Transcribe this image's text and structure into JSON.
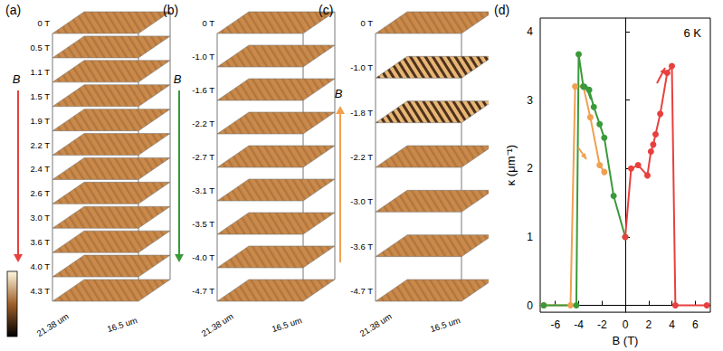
{
  "panels": [
    {
      "label": "(a)",
      "axis_label": "B",
      "color": "#e8403f",
      "direction": "down",
      "colorbar": true,
      "fields": [
        "0 T",
        "0.5 T",
        "1.1 T",
        "1.5 T",
        "1.9 T",
        "2.2 T",
        "2.4 T",
        "2.6 T",
        "3.0 T",
        "3.6 T",
        "4.0 T",
        "4.3 T"
      ],
      "dims": [
        "21.38 um",
        "16.5 um"
      ]
    },
    {
      "label": "(b)",
      "axis_label": "B",
      "color": "#3a9a3a",
      "direction": "down",
      "colorbar": false,
      "fields": [
        "0 T",
        "-1.0 T",
        "-1.6 T",
        "-2.2 T",
        "-2.7 T",
        "-3.1 T",
        "-3.5 T",
        "-4.0 T",
        "-4.7 T"
      ],
      "dims": [
        "21.38 um",
        "16.5 um"
      ]
    },
    {
      "label": "(c)",
      "axis_label": "B",
      "color": "#f0a050",
      "direction": "up",
      "colorbar": false,
      "fields": [
        "0 T",
        "-1.0 T",
        "-1.8 T",
        "-2.2 T",
        "-3.0 T",
        "-3.6 T",
        "-4.7 T"
      ],
      "dims": [
        "21.38 um",
        "16.5 um"
      ]
    }
  ],
  "chart_data": {
    "type": "line",
    "title": "(d)",
    "annotation": "6 K",
    "x_label": "B (T)",
    "y_label": "κ (μm⁻¹)",
    "xlim": [
      -7.3,
      7.3
    ],
    "xticks": [
      -6,
      -4,
      -2,
      0,
      2,
      4,
      6
    ],
    "ylim": [
      -0.1,
      4.2
    ],
    "yticks": [
      0,
      1,
      2,
      3,
      4
    ],
    "grid": false,
    "series": [
      {
        "color": "#f0a050",
        "marker": "circle",
        "x": [
          -7,
          -4.7,
          -4.3,
          -3.6,
          -3.0,
          -2.2,
          -1.8
        ],
        "values": [
          0,
          0,
          3.2,
          3.2,
          2.75,
          2.05,
          1.95
        ]
      },
      {
        "color": "#3a9a3a",
        "marker": "circle",
        "x": [
          -7,
          -4.2,
          -4,
          -3.6,
          -3.1,
          -2.7,
          -2.2,
          -1.8,
          -1.0,
          0
        ],
        "values": [
          0,
          0,
          3.67,
          3.2,
          3.15,
          2.9,
          2.65,
          2.45,
          1.6,
          1.0
        ]
      },
      {
        "color": "#e8403f",
        "marker": "circle",
        "x": [
          0,
          0.5,
          1.1,
          1.9,
          2.2,
          2.4,
          2.6,
          3.0,
          3.6,
          4.0,
          4.3,
          7
        ],
        "values": [
          1.0,
          2.0,
          2.05,
          1.9,
          2.25,
          2.35,
          2.5,
          2.8,
          3.4,
          3.5,
          0,
          0
        ]
      }
    ]
  }
}
